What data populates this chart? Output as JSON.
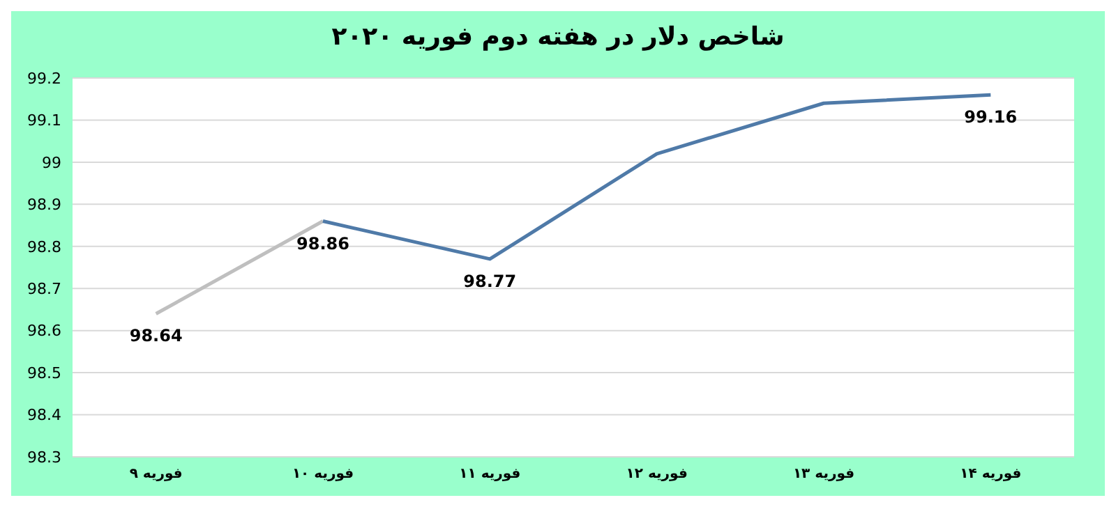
{
  "chart_data": {
    "type": "line",
    "title": "شاخص دلار در هفته دوم فوریه ۲۰۲۰",
    "categories": [
      "۹ فوریه",
      "۱۰ فوریه",
      "۱۱ فوریه",
      "۱۲ فوریه",
      "۱۳ فوریه",
      "۱۴ فوریه"
    ],
    "series": [
      {
        "color": "#bfbfbf",
        "values": [
          98.64,
          98.86,
          null,
          null,
          null,
          null
        ],
        "value_labels": [
          "98.64",
          null,
          null,
          null,
          null,
          null
        ]
      },
      {
        "color": "#4f7aa8",
        "values": [
          null,
          98.86,
          98.77,
          99.02,
          99.14,
          99.16
        ],
        "value_labels": [
          null,
          "98.86",
          "98.77",
          null,
          null,
          "99.16"
        ]
      }
    ],
    "ylim": [
      98.3,
      99.2
    ],
    "yticks": [
      98.3,
      98.4,
      98.5,
      98.6,
      98.7,
      98.8,
      98.9,
      99,
      99.1,
      99.2
    ],
    "grid": "y",
    "marker": "none",
    "line_style": "solid"
  }
}
